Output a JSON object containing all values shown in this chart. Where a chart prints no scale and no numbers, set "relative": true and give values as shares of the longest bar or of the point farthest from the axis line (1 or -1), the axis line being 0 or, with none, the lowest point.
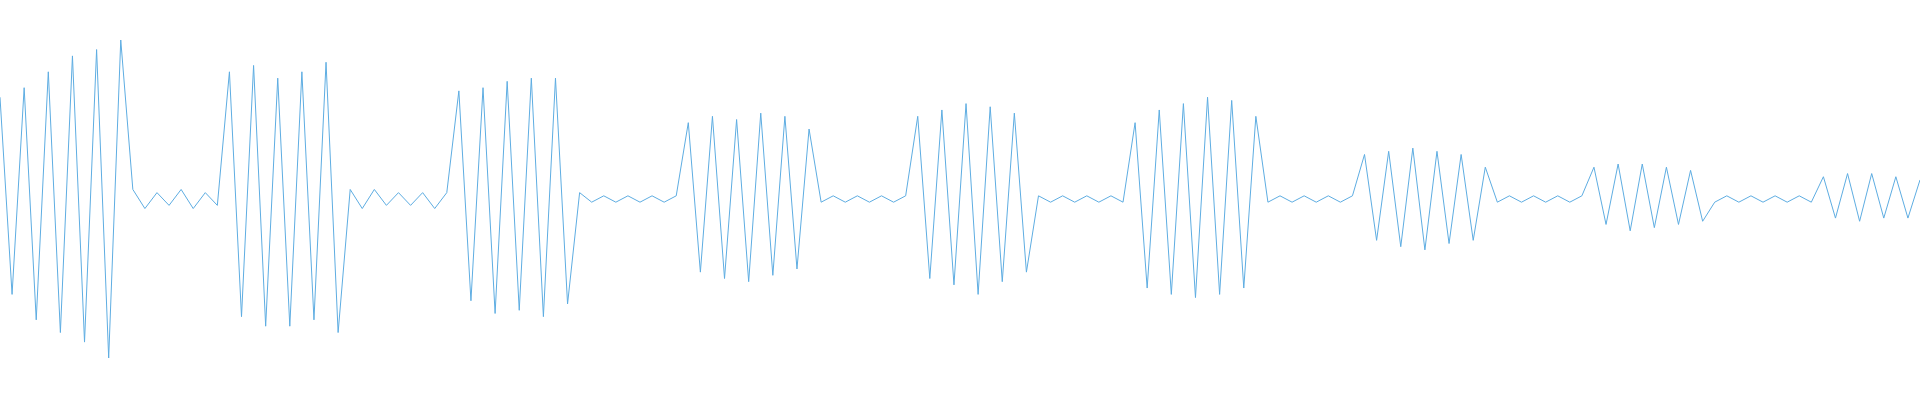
{
  "chart_data": {
    "type": "line",
    "relative": true,
    "marker": "none",
    "categories": [
      null,
      null,
      null,
      null,
      null,
      null,
      null,
      null,
      null,
      null,
      null,
      null,
      null,
      null,
      null,
      null,
      null,
      null,
      null,
      null,
      null,
      null,
      null,
      null,
      null,
      null,
      null,
      null,
      null,
      null,
      null,
      null,
      null,
      null,
      null,
      null,
      null,
      null,
      null,
      null,
      null,
      null,
      null,
      null,
      null,
      null,
      null,
      null,
      null,
      null,
      null,
      null,
      null,
      null,
      null,
      null,
      null,
      null,
      null,
      null,
      null,
      null,
      null,
      null,
      null,
      null,
      null,
      null,
      null,
      null,
      null,
      null,
      null,
      null,
      null,
      null,
      null,
      null,
      null,
      null,
      null,
      null,
      null,
      null,
      null,
      null,
      null,
      null,
      null,
      null,
      null,
      null,
      null,
      null,
      null,
      null,
      null,
      null,
      null,
      null,
      null,
      null,
      null,
      null,
      null,
      null,
      null,
      null,
      null,
      null,
      null,
      null,
      null,
      null,
      null,
      null,
      null,
      null,
      null,
      null,
      null,
      null,
      null,
      null,
      null,
      null,
      null,
      null,
      null,
      null,
      null,
      null,
      null,
      null,
      null,
      null,
      null,
      null,
      null,
      null,
      null,
      null,
      null,
      null,
      null,
      null,
      null,
      null,
      null,
      null,
      null,
      null,
      null,
      null,
      null,
      null,
      null,
      null,
      null,
      null
    ],
    "series": [
      {
        "color": "#5eade2",
        "values": [
          0.82,
          0.2,
          0.85,
          0.12,
          0.9,
          0.08,
          0.95,
          0.05,
          0.97,
          0.0,
          1.0,
          0.53,
          0.47,
          0.52,
          0.48,
          0.53,
          0.47,
          0.52,
          0.48,
          0.9,
          0.13,
          0.92,
          0.1,
          0.88,
          0.1,
          0.9,
          0.12,
          0.93,
          0.08,
          0.53,
          0.47,
          0.53,
          0.48,
          0.52,
          0.48,
          0.52,
          0.47,
          0.52,
          0.84,
          0.18,
          0.85,
          0.14,
          0.87,
          0.15,
          0.88,
          0.13,
          0.88,
          0.17,
          0.52,
          0.49,
          0.51,
          0.49,
          0.51,
          0.49,
          0.51,
          0.49,
          0.51,
          0.74,
          0.27,
          0.76,
          0.25,
          0.75,
          0.24,
          0.77,
          0.26,
          0.76,
          0.28,
          0.72,
          0.49,
          0.51,
          0.49,
          0.51,
          0.49,
          0.51,
          0.49,
          0.51,
          0.76,
          0.25,
          0.78,
          0.23,
          0.8,
          0.2,
          0.79,
          0.24,
          0.77,
          0.27,
          0.51,
          0.49,
          0.51,
          0.49,
          0.51,
          0.49,
          0.51,
          0.49,
          0.74,
          0.22,
          0.78,
          0.2,
          0.8,
          0.19,
          0.82,
          0.2,
          0.81,
          0.22,
          0.76,
          0.49,
          0.51,
          0.49,
          0.51,
          0.49,
          0.51,
          0.49,
          0.51,
          0.64,
          0.37,
          0.65,
          0.35,
          0.66,
          0.34,
          0.65,
          0.36,
          0.64,
          0.37,
          0.6,
          0.49,
          0.51,
          0.49,
          0.51,
          0.49,
          0.51,
          0.49,
          0.51,
          0.6,
          0.42,
          0.61,
          0.4,
          0.61,
          0.41,
          0.6,
          0.42,
          0.59,
          0.43,
          0.49,
          0.51,
          0.49,
          0.51,
          0.49,
          0.51,
          0.49,
          0.51,
          0.49,
          0.57,
          0.44,
          0.58,
          0.43,
          0.58,
          0.44,
          0.57,
          0.44,
          0.56
        ]
      }
    ]
  }
}
